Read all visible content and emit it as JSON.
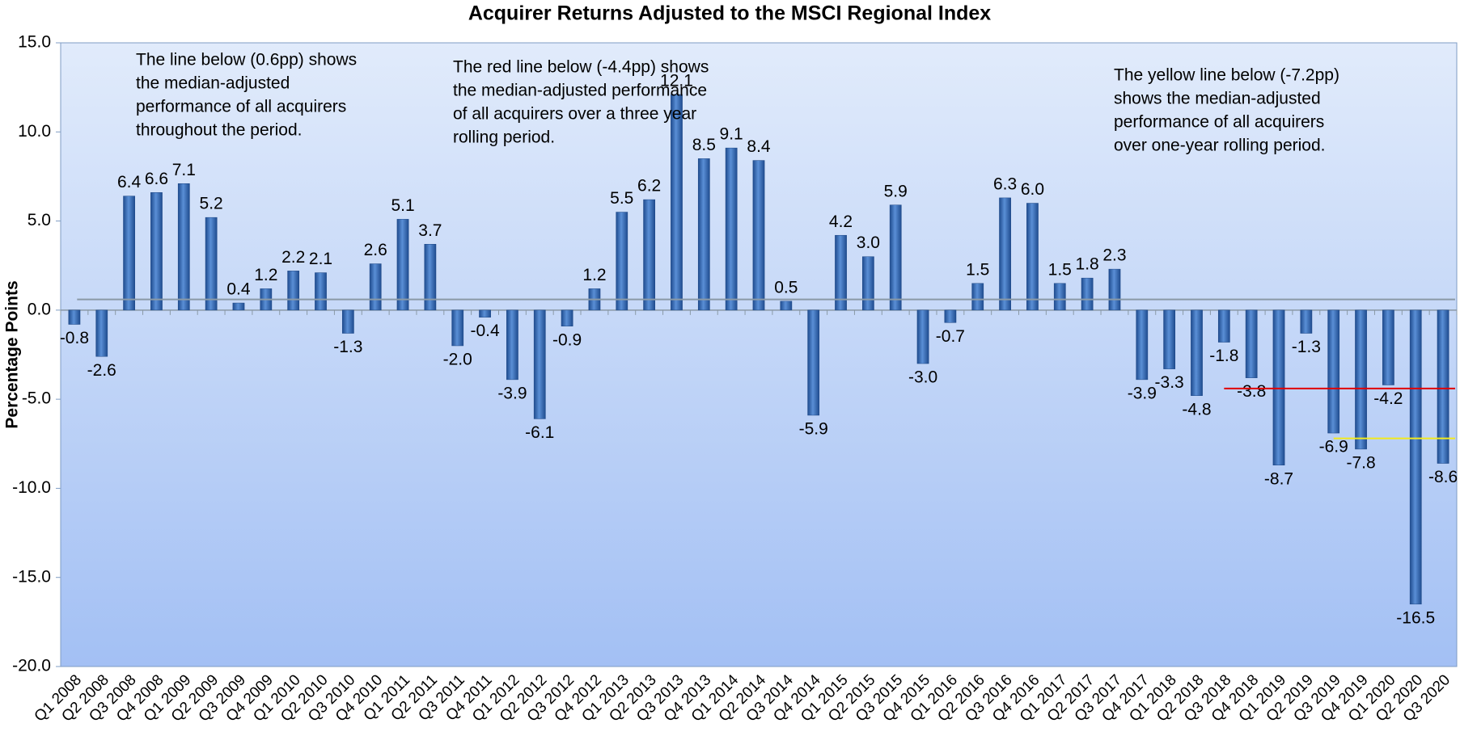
{
  "chart_data": {
    "type": "bar",
    "title": "Acquirer Returns Adjusted to the MSCI Regional Index",
    "y_label": "Percentage Points",
    "categories": [
      "Q1 2008",
      "Q2 2008",
      "Q3 2008",
      "Q4 2008",
      "Q1 2009",
      "Q2 2009",
      "Q3 2009",
      "Q4 2009",
      "Q1 2010",
      "Q2 2010",
      "Q3 2010",
      "Q4 2010",
      "Q1 2011",
      "Q2 2011",
      "Q3 2011",
      "Q4 2011",
      "Q1 2012",
      "Q2 2012",
      "Q3 2012",
      "Q4 2012",
      "Q1 2013",
      "Q2 2013",
      "Q3 2013",
      "Q4 2013",
      "Q1 2014",
      "Q2 2014",
      "Q3 2014",
      "Q4 2014",
      "Q1 2015",
      "Q2 2015",
      "Q3 2015",
      "Q4 2015",
      "Q1 2016",
      "Q2 2016",
      "Q3 2016",
      "Q4 2016",
      "Q1 2017",
      "Q2 2017",
      "Q3 2017",
      "Q4 2017",
      "Q1 2018",
      "Q2 2018",
      "Q3 2018",
      "Q4 2018",
      "Q1 2019",
      "Q2 2019",
      "Q3 2019",
      "Q4 2019",
      "Q1 2020",
      "Q2 2020",
      "Q3 2020"
    ],
    "values": [
      -0.8,
      -2.6,
      6.4,
      6.6,
      7.1,
      5.2,
      0.4,
      1.2,
      2.2,
      2.1,
      -1.3,
      2.6,
      5.1,
      3.7,
      -2.0,
      -0.4,
      -3.9,
      -6.1,
      -0.9,
      1.2,
      5.5,
      6.2,
      12.1,
      8.5,
      9.1,
      8.4,
      0.5,
      -5.9,
      4.2,
      3.0,
      5.9,
      -3.0,
      -0.7,
      1.5,
      6.3,
      6.0,
      1.5,
      1.8,
      2.3,
      -3.9,
      -3.3,
      -4.8,
      -1.8,
      -3.8,
      -8.7,
      -1.3,
      -6.9,
      -7.8,
      -4.2,
      -16.5,
      -8.6
    ],
    "value_labels": [
      "-0.8",
      "-2.6",
      "6.4",
      "6.6",
      "7.1",
      "5.2",
      "0.4",
      "1.2",
      "2.2",
      "2.1",
      "-1.3",
      "2.6",
      "5.1",
      "3.7",
      "-2.0",
      "-0.4",
      "-3.9",
      "-6.1",
      "-0.9",
      "1.2",
      "5.5",
      "6.2",
      "12.1",
      "8.5",
      "9.1",
      "8.4",
      "0.5",
      "-5.9",
      "4.2",
      "3.0",
      "5.9",
      "-3.0",
      "-0.7",
      "1.5",
      "6.3",
      "6.0",
      "1.5",
      "1.8",
      "2.3",
      "-3.9",
      "-3.3",
      "-4.8",
      "-1.8",
      "-3.8",
      "-8.7",
      "-1.3",
      "-6.9",
      "-7.8",
      "-4.2",
      "-16.5",
      "-8.6"
    ],
    "color": "#2f62ad",
    "ylim": [
      -20,
      15
    ],
    "yticks": [
      {
        "value": -20,
        "label": "-20.0"
      },
      {
        "value": -15,
        "label": "-15.0"
      },
      {
        "value": -10,
        "label": "-10.0"
      },
      {
        "value": -5,
        "label": "-5.0"
      },
      {
        "value": 0,
        "label": "0.0"
      },
      {
        "value": 5,
        "label": "5.0"
      },
      {
        "value": 10,
        "label": "10.0"
      },
      {
        "value": 15,
        "label": "15.0"
      }
    ],
    "reference_lines": [
      {
        "value": 0.6,
        "color": "#8a99a6",
        "from": "Q1 2008",
        "to": "Q3 2020"
      },
      {
        "value": -4.4,
        "color": "#e00000",
        "from": "Q3 2018",
        "to": "Q3 2020"
      },
      {
        "value": -7.2,
        "color": "#f2ea1c",
        "from": "Q3 2019",
        "to": "Q3 2020"
      }
    ],
    "annotations": [
      {
        "lines": [
          "The line below (0.6pp) shows",
          "the median-adjusted",
          "performance of all acquirers",
          "throughout the period."
        ]
      },
      {
        "lines": [
          "The red line below (-4.4pp) shows",
          "the median-adjusted performance",
          "of all acquirers over a three year",
          "rolling period."
        ]
      },
      {
        "lines": [
          "The yellow line below (-7.2pp)",
          "shows the median-adjusted",
          "performance of all acquirers",
          "over one-year rolling period."
        ]
      }
    ]
  }
}
